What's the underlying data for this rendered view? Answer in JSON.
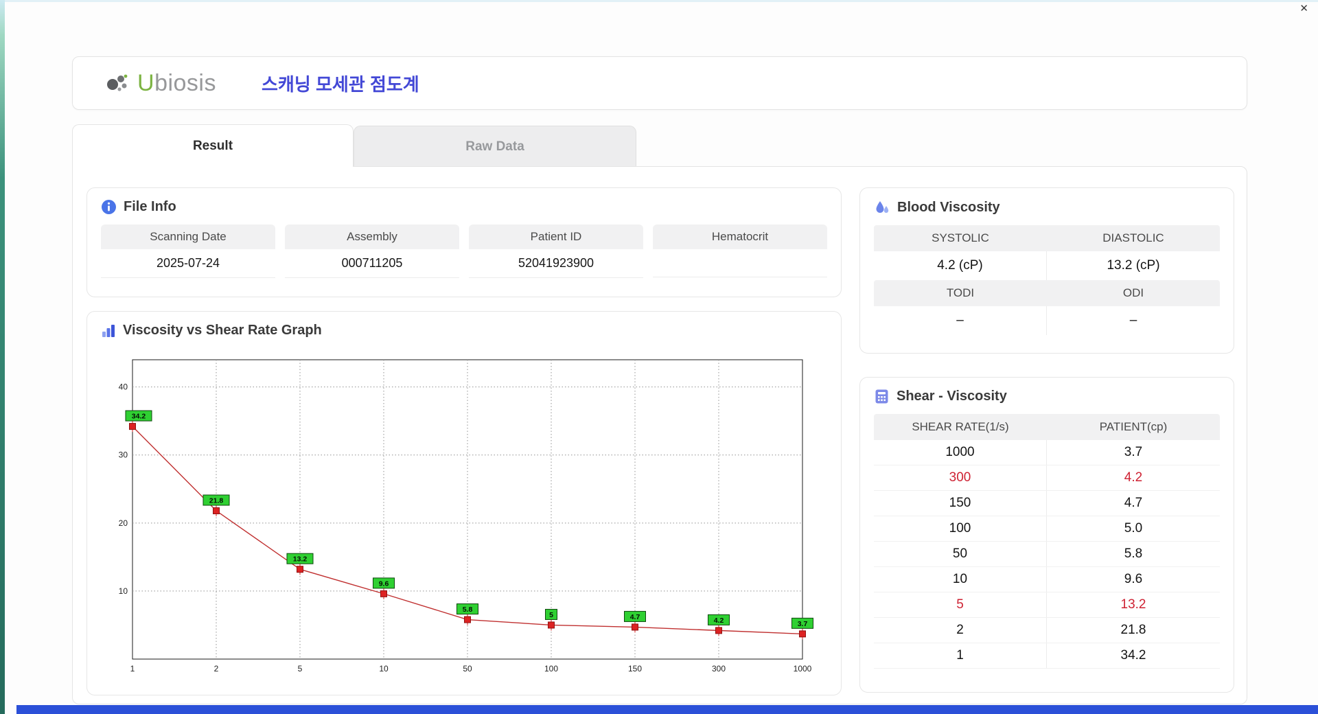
{
  "window": {
    "close_label": "✕"
  },
  "header": {
    "logo_u": "U",
    "logo_rest": "biosis",
    "title_korean": "스캐닝 모세관 점도계"
  },
  "tabs": [
    {
      "label": "Result",
      "active": true
    },
    {
      "label": "Raw Data",
      "active": false
    }
  ],
  "file_info": {
    "title": "File Info",
    "fields": [
      {
        "label": "Scanning Date",
        "value": "2025-07-24"
      },
      {
        "label": "Assembly",
        "value": "000711205"
      },
      {
        "label": "Patient ID",
        "value": "52041923900"
      },
      {
        "label": "Hematocrit",
        "value": ""
      }
    ]
  },
  "graph_panel": {
    "title": "Viscosity vs Shear Rate Graph"
  },
  "chart_data": {
    "type": "line",
    "title": "Viscosity vs Shear Rate Graph",
    "xlabel": "",
    "ylabel": "",
    "x_labels": [
      "1",
      "2",
      "5",
      "10",
      "50",
      "100",
      "150",
      "300",
      "1000"
    ],
    "values": [
      34.2,
      21.8,
      13.2,
      9.6,
      5.8,
      5,
      4.7,
      4.2,
      3.7
    ],
    "point_labels": [
      "34.2",
      "21.8",
      "13.2",
      "9.6",
      "5.8",
      "5",
      "4.7",
      "4.2",
      "3.7"
    ],
    "y_ticks": [
      10,
      20,
      30,
      40
    ],
    "ylim": [
      0,
      44
    ],
    "grid": "dashed",
    "legend": "none",
    "line_color": "#c03030",
    "marker_color": "#dd2222",
    "label_bg": "#2fd032"
  },
  "blood_viscosity": {
    "title": "Blood Viscosity",
    "rows": [
      {
        "headers": [
          "SYSTOLIC",
          "DIASTOLIC"
        ],
        "values": [
          "4.2 (cP)",
          "13.2 (cP)"
        ]
      },
      {
        "headers": [
          "TODI",
          "ODI"
        ],
        "values": [
          "–",
          "–"
        ]
      }
    ]
  },
  "shear_viscosity": {
    "title": "Shear - Viscosity",
    "columns": [
      "SHEAR RATE(1/s)",
      "PATIENT(cp)"
    ],
    "rows": [
      {
        "shear": "1000",
        "patient": "3.7",
        "highlight": false
      },
      {
        "shear": "300",
        "patient": "4.2",
        "highlight": true
      },
      {
        "shear": "150",
        "patient": "4.7",
        "highlight": false
      },
      {
        "shear": "100",
        "patient": "5.0",
        "highlight": false
      },
      {
        "shear": "50",
        "patient": "5.8",
        "highlight": false
      },
      {
        "shear": "10",
        "patient": "9.6",
        "highlight": false
      },
      {
        "shear": "5",
        "patient": "13.2",
        "highlight": true
      },
      {
        "shear": "2",
        "patient": "21.8",
        "highlight": false
      },
      {
        "shear": "1",
        "patient": "34.2",
        "highlight": false
      }
    ]
  }
}
